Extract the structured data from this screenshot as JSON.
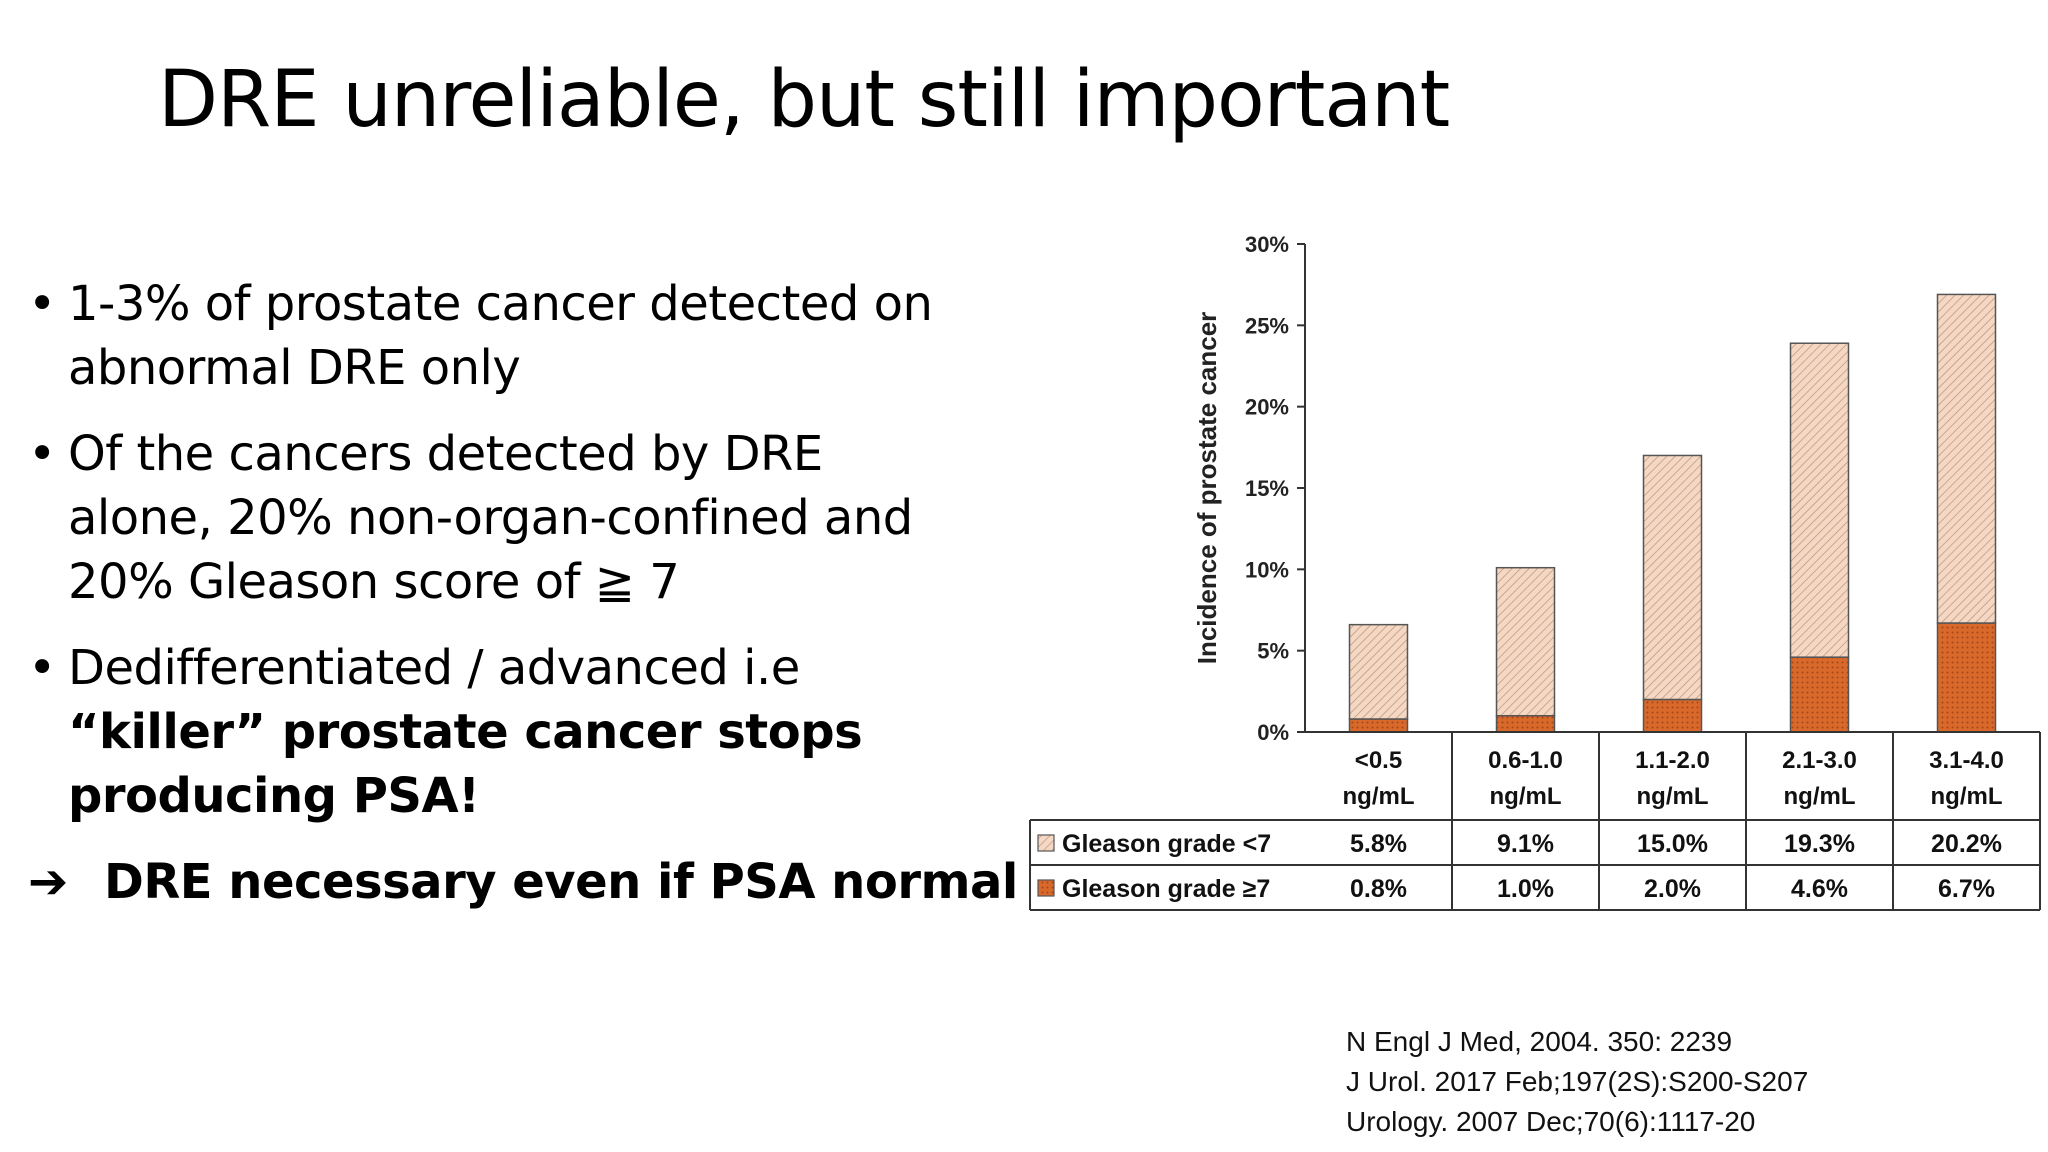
{
  "slide": {
    "title": "DRE unreliable, but still important",
    "bullets": [
      {
        "lines": [
          {
            "text": "1-3% of prostate cancer detected on"
          },
          {
            "text": "abnormal DRE only"
          }
        ]
      },
      {
        "lines": [
          {
            "text": "Of the cancers detected by DRE"
          },
          {
            "text": "alone, 20% non-organ-confined and"
          },
          {
            "text": "20% Gleason score of ≧ 7"
          }
        ]
      },
      {
        "lines": [
          {
            "text": "Dedifferentiated / advanced i.e",
            "bold": false
          },
          {
            "text": "“killer” prostate cancer stops",
            "bold": true
          },
          {
            "text": "producing PSA!",
            "bold": true
          }
        ]
      }
    ],
    "conclusion": {
      "arrow": "➔",
      "text": "DRE necessary even if PSA normal"
    },
    "references": [
      "N Engl J Med, 2004. 350: 2239",
      "J Urol. 2017 Feb;197(2S):S200-S207",
      "Urology. 2007 Dec;70(6):1117-20"
    ]
  },
  "chart_data": {
    "type": "bar",
    "stacked": true,
    "ylabel": "Incidence of prostate cancer",
    "yticks": [
      "0%",
      "5%",
      "10%",
      "15%",
      "20%",
      "25%",
      "30%"
    ],
    "ylim": [
      0,
      30
    ],
    "categories": [
      [
        "<0.5",
        "ng/mL"
      ],
      [
        "0.6-1.0",
        "ng/mL"
      ],
      [
        "1.1-2.0",
        "ng/mL"
      ],
      [
        "2.1-3.0",
        "ng/mL"
      ],
      [
        "3.1-4.0",
        "ng/mL"
      ]
    ],
    "series": [
      {
        "name": "Gleason grade ≥7",
        "values": [
          0.8,
          1.0,
          2.0,
          4.6,
          6.7
        ],
        "labels": [
          "0.8%",
          "1.0%",
          "2.0%",
          "4.6%",
          "6.7%"
        ],
        "color": "#d9692a"
      },
      {
        "name": "Gleason grade <7",
        "values": [
          5.8,
          9.1,
          15.0,
          19.3,
          20.2
        ],
        "labels": [
          "5.8%",
          "9.1%",
          "15.0%",
          "19.3%",
          "20.2%"
        ],
        "color": "#f5d8c4"
      }
    ],
    "table_rows": [
      {
        "series_index": 1,
        "label": "Gleason grade <7"
      },
      {
        "series_index": 0,
        "label": "Gleason grade ≥7"
      }
    ],
    "grid": false,
    "legend": "table-rows"
  }
}
